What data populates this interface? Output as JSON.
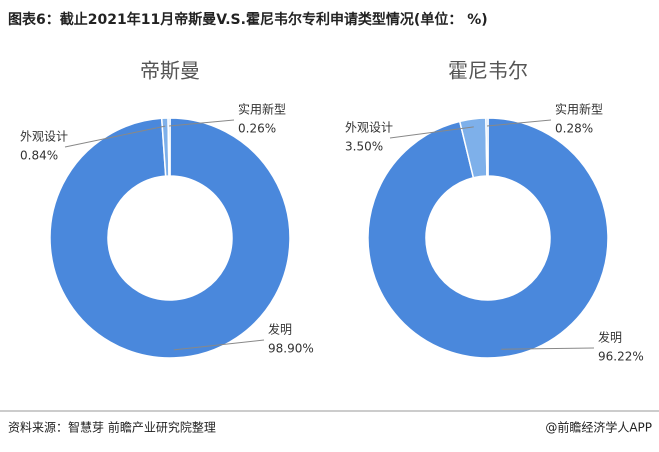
{
  "title": "图表6：截止2021年11月帝斯曼V.S.霍尼韦尔专利申请类型情况(单位： %)",
  "source": "资料来源：智慧芽 前瞻产业研究院整理",
  "brand": "@前瞻经济学人APP",
  "chart_data": [
    {
      "type": "pie",
      "title": "帝斯曼",
      "categories": [
        "发明",
        "外观设计",
        "实用新型"
      ],
      "values": [
        98.9,
        0.84,
        0.26
      ],
      "value_labels": [
        "98.90%",
        "0.84%",
        "0.26%"
      ],
      "colors": [
        "#4a88dc",
        "#7eb0ea",
        "#aacdf3"
      ]
    },
    {
      "type": "pie",
      "title": "霍尼韦尔",
      "categories": [
        "发明",
        "外观设计",
        "实用新型"
      ],
      "values": [
        96.22,
        3.5,
        0.28
      ],
      "value_labels": [
        "96.22%",
        "3.50%",
        "0.28%"
      ],
      "colors": [
        "#4a88dc",
        "#7eb0ea",
        "#aacdf3"
      ]
    }
  ]
}
